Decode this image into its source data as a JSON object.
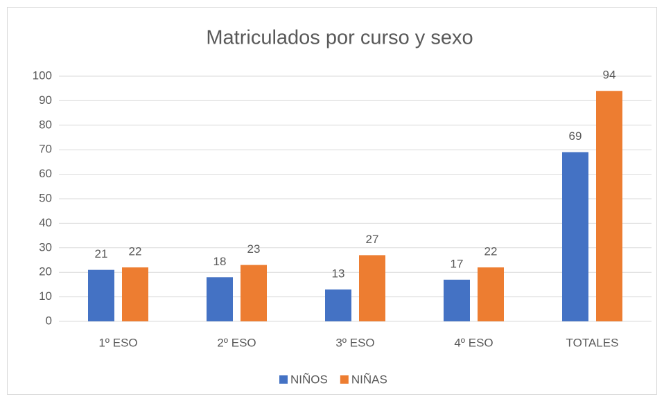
{
  "chart_data": {
    "type": "bar",
    "title": "Matriculados por  curso y sexo",
    "categories": [
      "1º ESO",
      "2º ESO",
      "3º ESO",
      "4º ESO",
      "TOTALES"
    ],
    "series": [
      {
        "name": "NIÑOS",
        "color": "#4472c4",
        "values": [
          21,
          18,
          13,
          17,
          69
        ]
      },
      {
        "name": "NIÑAS",
        "color": "#ed7d31",
        "values": [
          22,
          23,
          27,
          22,
          94
        ]
      }
    ],
    "ylim": [
      0,
      100
    ],
    "yticks": [
      0,
      10,
      20,
      30,
      40,
      50,
      60,
      70,
      80,
      90,
      100
    ],
    "grid": true,
    "legend": "bottom"
  }
}
